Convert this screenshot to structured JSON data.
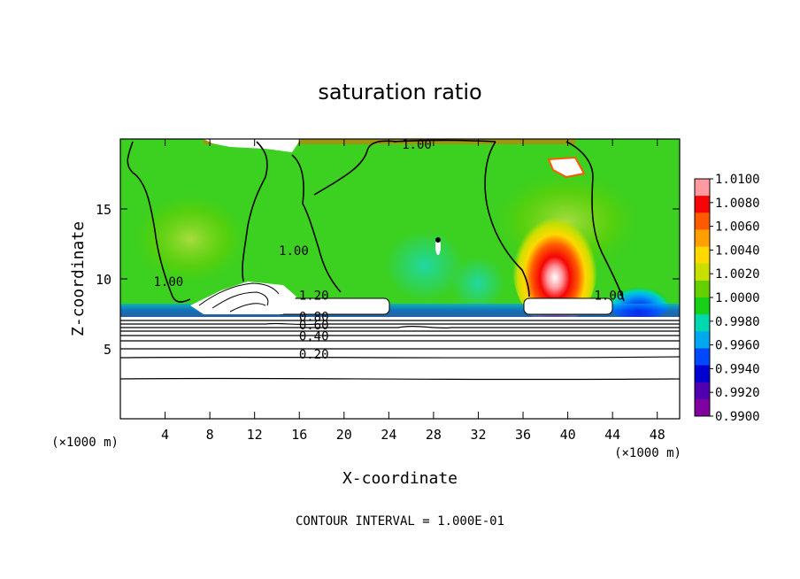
{
  "chart_data": {
    "type": "contour",
    "title": "saturation ratio",
    "xlabel": "X-coordinate",
    "ylabel": "Z-coordinate",
    "x_unit": "(×1000 m)",
    "y_unit": "(×1000 m)",
    "footer": "CONTOUR INTERVAL = 1.000E-01",
    "xlim": [
      0,
      50
    ],
    "ylim": [
      0,
      20
    ],
    "x_ticks": [
      4,
      8,
      12,
      16,
      20,
      24,
      28,
      32,
      36,
      40,
      44,
      48
    ],
    "y_ticks": [
      5,
      10,
      15
    ],
    "x_tick_labels": [
      "4",
      "8",
      "12",
      "16",
      "20",
      "24",
      "28",
      "32",
      "36",
      "40",
      "44",
      "48"
    ],
    "y_tick_labels": [
      "5",
      "10",
      "15"
    ],
    "colorbar": {
      "levels": [
        "1.0100",
        "1.0080",
        "1.0060",
        "1.0040",
        "1.0020",
        "1.0000",
        "0.9980",
        "0.9960",
        "0.9940",
        "0.9920",
        "0.9900"
      ],
      "colors": [
        "#ff9aa0",
        "#f50505",
        "#ff5a00",
        "#ffa000",
        "#ffd800",
        "#c8e000",
        "#64d000",
        "#18d018",
        "#00d8b0",
        "#00a8f0",
        "#0048ff",
        "#0000d0",
        "#5000b0",
        "#8000a0"
      ]
    },
    "contour_labels": [
      {
        "text": "1.00",
        "x": 26.5,
        "y": 19.3
      },
      {
        "text": "1.00",
        "x": 15.5,
        "y": 11.7
      },
      {
        "text": "1.00",
        "x": 4.3,
        "y": 9.5
      },
      {
        "text": "1.00",
        "x": 43.7,
        "y": 8.5
      },
      {
        "text": "1.20",
        "x": 17.3,
        "y": 8.5
      },
      {
        "text": "0.80",
        "x": 17.3,
        "y": 7.0
      },
      {
        "text": "0.60",
        "x": 17.3,
        "y": 6.4
      },
      {
        "text": "0.40",
        "x": 17.3,
        "y": 5.6
      },
      {
        "text": "0.20",
        "x": 17.3,
        "y": 4.3
      }
    ],
    "subsaturated_levels": [
      6.0,
      5.6,
      5.2,
      4.3,
      3.0
    ]
  }
}
